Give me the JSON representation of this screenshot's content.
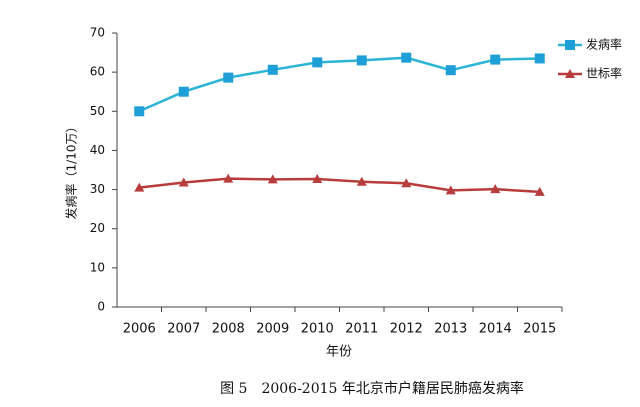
{
  "chart_data": {
    "type": "line",
    "caption": "图 5　2006-2015 年北京市户籍居民肺癌发病率",
    "x_label": "年份",
    "y_label": "发病率（1/10万）",
    "categories": [
      "2006",
      "2007",
      "2008",
      "2009",
      "2010",
      "2011",
      "2012",
      "2013",
      "2014",
      "2015"
    ],
    "series": [
      {
        "name": "发病率",
        "color": "#2bb4d6",
        "marker_color": "#1f9fd8",
        "marker": "square",
        "values": [
          50.0,
          55.0,
          58.6,
          60.6,
          62.5,
          63.0,
          63.7,
          60.5,
          63.2,
          63.5
        ]
      },
      {
        "name": "世标率",
        "color": "#b83c3c",
        "marker_color": "#b83c3c",
        "marker": "triangle",
        "values": [
          30.5,
          31.8,
          32.8,
          32.6,
          32.7,
          32.0,
          31.6,
          29.8,
          30.1,
          29.4
        ]
      }
    ],
    "ylim": [
      0,
      70
    ],
    "yticks": [
      0,
      10,
      20,
      30,
      40,
      50,
      60,
      70
    ],
    "grid": false,
    "legend": "top-right"
  }
}
